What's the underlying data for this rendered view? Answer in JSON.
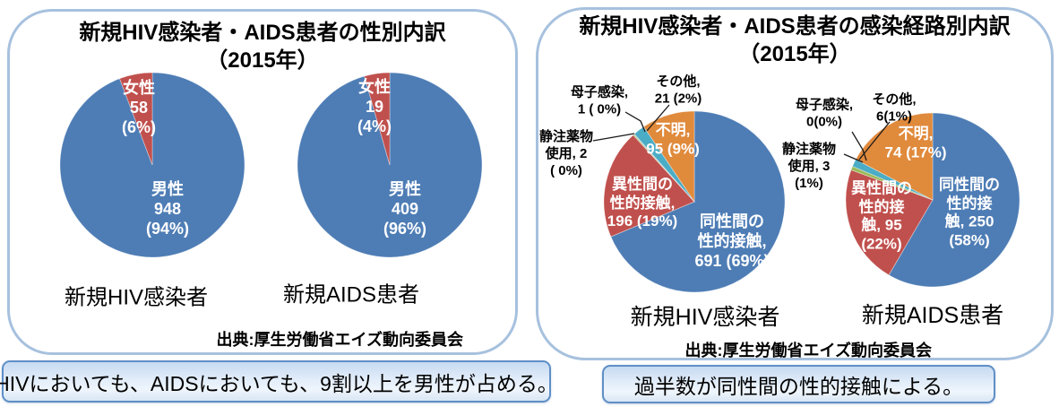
{
  "gender_panel": {
    "title_line1": "新規HIV感染者・AIDS患者の性別内訳",
    "title_line2": "（2015年）",
    "source": "出典:厚生労働省エイズ動向委員会",
    "callout": "HIVにおいても、AIDSにおいても、9割以上を男性が占める。"
  },
  "route_panel": {
    "title_line1": "新規HIV感染者・AIDS患者の感染経路別内訳",
    "title_line2": "（2015年）",
    "source": "出典:厚生労働省エイズ動向委員会",
    "callout": "過半数が同性間の性的接触による。"
  },
  "colors": {
    "blue": "#4E7DB5",
    "red": "#C0504D",
    "green": "#9BBB59",
    "purple": "#8064A2",
    "teal": "#4BACC6",
    "orange": "#E08A3C",
    "panel_border": "#A7C1DE",
    "callout_border": "#5F8FC7"
  },
  "chart_data": [
    {
      "type": "pie",
      "caption": "新規HIV感染者",
      "group": "性別内訳 2015年",
      "slices": [
        {
          "key": "male",
          "label": "男性",
          "value": 948,
          "pct": "94%",
          "color": "#4E7DB5",
          "display": "男性\n948\n(94%)"
        },
        {
          "key": "female",
          "label": "女性",
          "value": 58,
          "pct": "6%",
          "color": "#C0504D",
          "display": "女性\n58\n(6%)"
        }
      ]
    },
    {
      "type": "pie",
      "caption": "新規AIDS患者",
      "group": "性別内訳 2015年",
      "slices": [
        {
          "key": "male",
          "label": "男性",
          "value": 409,
          "pct": "96%",
          "color": "#4E7DB5",
          "display": "男性\n409\n(96%)"
        },
        {
          "key": "female",
          "label": "女性",
          "value": 19,
          "pct": "4%",
          "color": "#C0504D",
          "display": "女性\n19\n(4%)"
        }
      ]
    },
    {
      "type": "pie",
      "caption": "新規HIV感染者",
      "group": "感染経路別内訳 2015年",
      "slices": [
        {
          "key": "homosexual-contact",
          "label": "同性間の性的接触",
          "value": 691,
          "pct": "69%",
          "color": "#4E7DB5",
          "display": "同性間の\n性的接触,\n691 (69%)"
        },
        {
          "key": "heterosexual-contact",
          "label": "異性間の性的接触",
          "value": 196,
          "pct": "19%",
          "color": "#C0504D",
          "display": "異性間の\n性的接触,\n196 (19%)"
        },
        {
          "key": "iv-drug-use",
          "label": "静注薬物使用",
          "value": 2,
          "pct": "0%",
          "color": "#9BBB59",
          "display": "静注薬物\n使用, 2\n( 0%)"
        },
        {
          "key": "mother-to-child",
          "label": "母子感染",
          "value": 1,
          "pct": "0%",
          "color": "#8064A2",
          "display": "母子感染,\n1 ( 0%)"
        },
        {
          "key": "other",
          "label": "その他",
          "value": 21,
          "pct": "2%",
          "color": "#4BACC6",
          "display": "その他,\n21 (2%)"
        },
        {
          "key": "unknown",
          "label": "不明",
          "value": 95,
          "pct": "9%",
          "color": "#E08A3C",
          "display": "不明,\n95 (9%)"
        }
      ]
    },
    {
      "type": "pie",
      "caption": "新規AIDS患者",
      "group": "感染経路別内訳 2015年",
      "slices": [
        {
          "key": "homosexual-contact",
          "label": "同性間の性的接触",
          "value": 250,
          "pct": "58%",
          "color": "#4E7DB5",
          "display": "同性間の\n性的接\n触, 250\n(58%)"
        },
        {
          "key": "heterosexual-contact",
          "label": "異性間の性的接触",
          "value": 95,
          "pct": "22%",
          "color": "#C0504D",
          "display": "異性間の\n性的接\n触, 95\n(22%)"
        },
        {
          "key": "iv-drug-use",
          "label": "静注薬物使用",
          "value": 3,
          "pct": "1%",
          "color": "#9BBB59",
          "display": "静注薬物\n使用, 3\n(1%)"
        },
        {
          "key": "mother-to-child",
          "label": "母子感染",
          "value": 0,
          "pct": "0%",
          "color": "#8064A2",
          "display": "母子感染,\n0(0%)"
        },
        {
          "key": "other",
          "label": "その他",
          "value": 6,
          "pct": "1%",
          "color": "#4BACC6",
          "display": "その他,\n6(1%)"
        },
        {
          "key": "unknown",
          "label": "不明",
          "value": 74,
          "pct": "17%",
          "color": "#E08A3C",
          "display": "不明,\n74 (17%)"
        }
      ]
    }
  ]
}
